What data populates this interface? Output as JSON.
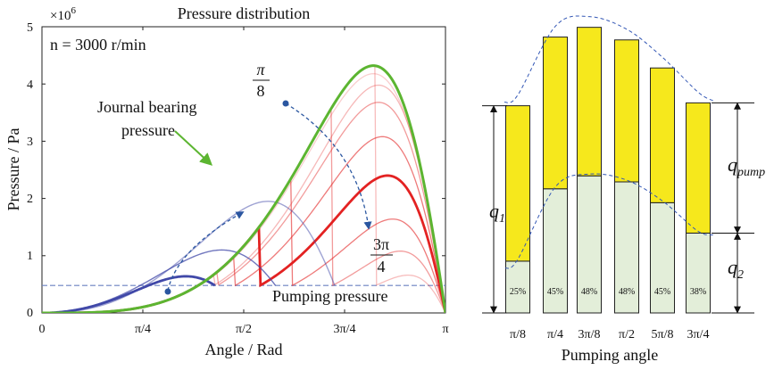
{
  "chart_data": [
    {
      "type": "line",
      "title": "Pressure distribution",
      "xlabel": "Angle / Rad",
      "ylabel": "Pressure / Pa",
      "y_exponent_label": "×10",
      "y_exponent_power": "6",
      "speed_label": "n = 3000 r/min",
      "x_tick_labels": [
        "0",
        "π/4",
        "π/2",
        "3π/4",
        "π"
      ],
      "y_ticks": [
        "0",
        "1",
        "2",
        "3",
        "4",
        "5"
      ],
      "xlim": [
        0,
        3.1416
      ],
      "ylim": [
        0,
        5
      ],
      "annotations": {
        "journal_1": "Journal bearing",
        "journal_2": "pressure",
        "pi8_num": "π",
        "pi8_den": "8",
        "threepi4_num": "3π",
        "threepi4_den": "4",
        "pumping": "Pumping pressure"
      },
      "pumping_pressure": 0.48,
      "journal_bearing": {
        "peak_x": 2.58,
        "peak_y": 4.32
      },
      "colors": {
        "journal": "#5cb531",
        "red": "#e32222",
        "blue": "#4048a8",
        "pumping_line": "#6a80c0",
        "dashed_arrow": "#2a56a0"
      },
      "red_family": [
        {
          "peak_x": 2.58,
          "peak_y": 4.18,
          "opacity": 0.22
        },
        {
          "peak_x": 2.62,
          "peak_y": 3.98,
          "opacity": 0.32
        },
        {
          "peak_x": 2.62,
          "peak_y": 3.68,
          "opacity": 0.45
        },
        {
          "peak_x": 2.65,
          "peak_y": 3.08,
          "opacity": 0.6
        },
        {
          "peak_x": 2.69,
          "peak_y": 2.4,
          "opacity": 1.0,
          "bold": true
        },
        {
          "peak_x": 2.73,
          "peak_y": 1.64,
          "opacity": 0.6
        },
        {
          "peak_x": 2.79,
          "peak_y": 1.08,
          "opacity": 0.45
        },
        {
          "peak_x": 2.85,
          "peak_y": 0.66,
          "opacity": 0.3
        }
      ],
      "blue_family": [
        {
          "end_x": 2.36,
          "peak_x": 1.76,
          "peak_y": 1.95,
          "opacity": 0.5
        },
        {
          "end_x": 1.96,
          "peak_x": 1.4,
          "peak_y": 1.1,
          "opacity": 0.75
        },
        {
          "end_x": 1.57,
          "peak_x": 1.12,
          "peak_y": 0.64,
          "opacity": 1.0,
          "bold": true
        }
      ]
    },
    {
      "type": "bar",
      "xlabel": "Pumping angle",
      "categories": [
        "π/8",
        "π/4",
        "3π/8",
        "π/2",
        "5π/8",
        "3π/4"
      ],
      "totals": [
        3.62,
        4.82,
        4.99,
        4.77,
        4.28,
        3.67
      ],
      "lower_share_pct": [
        25,
        45,
        48,
        48,
        45,
        38
      ],
      "lower_labels": [
        "25%",
        "45%",
        "48%",
        "48%",
        "45%",
        "38%"
      ],
      "ylim": [
        0,
        5
      ],
      "colors": {
        "upper": "#f6e81c",
        "lower": "#e3eed9",
        "edge": "#222222",
        "dashed": "#3357b5"
      },
      "dimension_labels": {
        "q1_main": "q",
        "q1_sub": "1",
        "q2_main": "q",
        "q2_sub": "2",
        "qpump_main": "q",
        "qpump_sub": "pump"
      }
    }
  ]
}
